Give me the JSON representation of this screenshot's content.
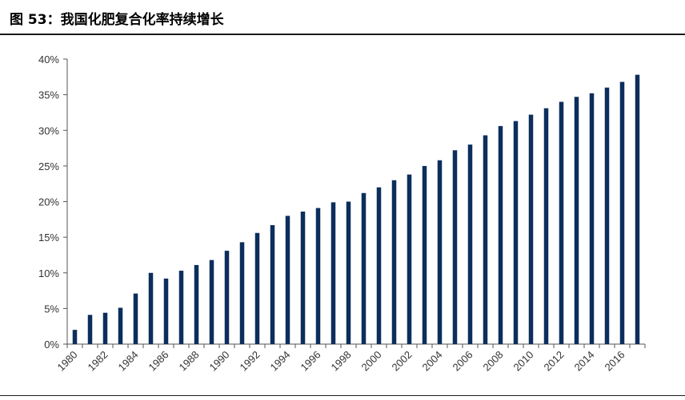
{
  "title": "图 53：我国化肥复合化率持续增长",
  "chart_data": {
    "type": "bar",
    "x": [
      1980,
      1981,
      1982,
      1983,
      1984,
      1985,
      1986,
      1987,
      1988,
      1989,
      1990,
      1991,
      1992,
      1993,
      1994,
      1995,
      1996,
      1997,
      1998,
      1999,
      2000,
      2001,
      2002,
      2003,
      2004,
      2005,
      2006,
      2007,
      2008,
      2009,
      2010,
      2011,
      2012,
      2013,
      2014,
      2015,
      2016,
      2017
    ],
    "x_tick_labels": [
      "1980",
      "1982",
      "1984",
      "1986",
      "1988",
      "1990",
      "1992",
      "1994",
      "1996",
      "1998",
      "2000",
      "2002",
      "2004",
      "2006",
      "2008",
      "2010",
      "2012",
      "2014",
      "2016"
    ],
    "values": [
      2.0,
      4.1,
      4.4,
      5.1,
      7.1,
      10.0,
      9.2,
      10.3,
      11.1,
      11.8,
      13.1,
      14.3,
      15.6,
      16.7,
      18.0,
      18.6,
      19.1,
      19.9,
      20.0,
      21.2,
      22.0,
      23.0,
      23.8,
      25.0,
      25.8,
      27.2,
      28.0,
      29.3,
      30.6,
      31.3,
      32.2,
      33.1,
      34.0,
      34.7,
      35.2,
      36.0,
      36.8,
      37.8
    ],
    "y_tick_labels": [
      "0%",
      "5%",
      "10%",
      "15%",
      "20%",
      "25%",
      "30%",
      "35%",
      "40%"
    ],
    "ylim": [
      0,
      40
    ],
    "bar_color": "#0b2e5c",
    "grid": false,
    "legend": "none"
  }
}
